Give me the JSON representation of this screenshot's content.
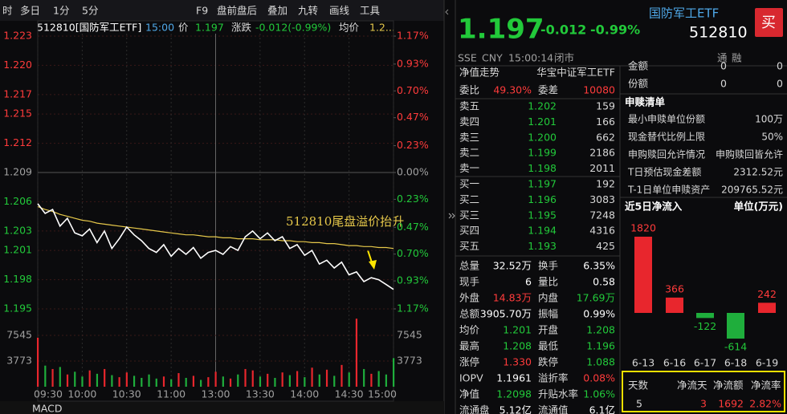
{
  "toolbar": {
    "items": [
      "时",
      "多日",
      "1分",
      "5分",
      "F9",
      "盘前盘后",
      "叠加",
      "九转",
      "画线",
      "工具"
    ]
  },
  "chart_header": {
    "code": "512810[国防军工ETF]",
    "time": "15:00",
    "price_label": "价",
    "price": "1.197",
    "change_label": "涨跌",
    "change": "-0.012(-0.99%)",
    "avg_label": "均价",
    "avg": "1.2..."
  },
  "annotation": "512810尾盘溢价抬升",
  "bottom_tab": "MACD",
  "chart_data": [
    {
      "type": "line",
      "xlim": [
        0,
        240
      ],
      "x": [
        0,
        5,
        10,
        15,
        20,
        25,
        30,
        35,
        40,
        45,
        50,
        55,
        60,
        65,
        70,
        75,
        80,
        85,
        90,
        95,
        100,
        105,
        110,
        115,
        120,
        125,
        130,
        135,
        140,
        145,
        150,
        155,
        160,
        165,
        170,
        175,
        180,
        185,
        190,
        195,
        200,
        205,
        210,
        215,
        220,
        225,
        230,
        235,
        240
      ],
      "xticks": [
        {
          "value": 0,
          "label": "09:30"
        },
        {
          "value": 30,
          "label": "10:00"
        },
        {
          "value": 60,
          "label": "10:30"
        },
        {
          "value": 90,
          "label": "11:00"
        },
        {
          "value": 120,
          "label": "13:00"
        },
        {
          "value": 150,
          "label": "13:30"
        },
        {
          "value": 180,
          "label": "14:00"
        },
        {
          "value": 210,
          "label": "14:30"
        },
        {
          "value": 240,
          "label": "15:00"
        }
      ],
      "ylim": [
        1.195,
        1.223
      ],
      "yticks": [
        {
          "value": 1.223,
          "label": "1.223"
        },
        {
          "value": 1.22,
          "label": "1.220"
        },
        {
          "value": 1.217,
          "label": "1.217"
        },
        {
          "value": 1.215,
          "label": "1.215"
        },
        {
          "value": 1.212,
          "label": "1.212"
        },
        {
          "value": 1.209,
          "label": "1.209"
        },
        {
          "value": 1.206,
          "label": "1.206"
        },
        {
          "value": 1.203,
          "label": "1.203"
        },
        {
          "value": 1.201,
          "label": "1.201"
        },
        {
          "value": 1.198,
          "label": "1.198"
        },
        {
          "value": 1.195,
          "label": "1.195"
        }
      ],
      "y2lim": [
        -1.17,
        1.17
      ],
      "y2ticks": [
        {
          "value": 1.17,
          "label": "1.17%"
        },
        {
          "value": 0.93,
          "label": "0.93%"
        },
        {
          "value": 0.7,
          "label": "0.70%"
        },
        {
          "value": 0.47,
          "label": "0.47%"
        },
        {
          "value": 0.23,
          "label": "0.23%"
        },
        {
          "value": 0,
          "label": "0.00%"
        },
        {
          "value": -0.23,
          "label": "0.23%"
        },
        {
          "value": -0.47,
          "label": "0.47%"
        },
        {
          "value": -0.7,
          "label": "0.70%"
        },
        {
          "value": -0.93,
          "label": "0.93%"
        },
        {
          "value": -1.17,
          "label": "1.17%"
        }
      ],
      "grid": true,
      "series": [
        {
          "color": "#ffffff",
          "values": [
            1.2058,
            1.2048,
            1.2052,
            1.2035,
            1.2043,
            1.2028,
            1.2025,
            1.2032,
            1.2018,
            1.203,
            1.2012,
            1.2022,
            1.2034,
            1.2026,
            1.202,
            1.2012,
            1.2008,
            1.2016,
            1.2004,
            1.2012,
            1.2006,
            1.2013,
            1.2002,
            1.2008,
            1.201,
            1.2006,
            1.2014,
            1.201,
            1.2024,
            1.203,
            1.2022,
            1.2028,
            1.202,
            1.2024,
            1.2012,
            1.2016,
            1.2005,
            1.201,
            1.1996,
            1.2,
            1.1992,
            1.1998,
            1.1985,
            1.1988,
            1.1978,
            1.1982,
            1.198,
            1.1975,
            1.197
          ]
        },
        {
          "color": "#e6c84a",
          "values": [
            1.2055,
            1.2052,
            1.205,
            1.2047,
            1.2045,
            1.2043,
            1.2041,
            1.204,
            1.2038,
            1.2037,
            1.2036,
            1.2035,
            1.2034,
            1.2033,
            1.2032,
            1.2031,
            1.203,
            1.2029,
            1.2028,
            1.2027,
            1.2026,
            1.2026,
            1.2025,
            1.2024,
            1.2024,
            1.2023,
            1.2023,
            1.2022,
            1.2022,
            1.2022,
            1.2021,
            1.2021,
            1.2021,
            1.202,
            1.202,
            1.2019,
            1.2019,
            1.2018,
            1.2018,
            1.2017,
            1.2017,
            1.2016,
            1.2015,
            1.2015,
            1.2014,
            1.2014,
            1.2013,
            1.2013,
            1.2012
          ]
        }
      ]
    },
    {
      "type": "bar",
      "xlim": [
        0,
        240
      ],
      "x": [
        0,
        5,
        10,
        15,
        20,
        25,
        30,
        35,
        40,
        45,
        50,
        55,
        60,
        65,
        70,
        75,
        80,
        85,
        90,
        95,
        100,
        105,
        110,
        115,
        120,
        125,
        130,
        135,
        140,
        145,
        150,
        155,
        160,
        165,
        170,
        175,
        180,
        185,
        190,
        195,
        200,
        205,
        210,
        215,
        220,
        225,
        230,
        235,
        240
      ],
      "ylim": [
        0,
        11318
      ],
      "yticks": [
        3773,
        7545
      ],
      "up_color": "#e8262d",
      "down_color": "#1fae3c",
      "values": [
        7200,
        3100,
        2600,
        2900,
        1800,
        2200,
        1500,
        2400,
        1900,
        2600,
        1700,
        1400,
        2100,
        1600,
        1300,
        1800,
        1200,
        1500,
        1100,
        2000,
        1300,
        1600,
        1000,
        1400,
        2200,
        1500,
        1200,
        1800,
        2600,
        2400,
        1500,
        1900,
        1300,
        2100,
        1700,
        2300,
        1400,
        2800,
        1800,
        2500,
        1600,
        3200,
        2100,
        10000,
        2600,
        1900,
        2300,
        1800,
        4200
      ]
    },
    {
      "type": "bar",
      "title": "近5日净流入",
      "unit": "单位(万元)",
      "categories": [
        "6-13",
        "6-16",
        "6-17",
        "6-18",
        "6-19"
      ],
      "values": [
        1820,
        366,
        -122,
        -614,
        242
      ],
      "up_color": "#e8262d",
      "down_color": "#1fae3c"
    }
  ],
  "quote": {
    "price": "1.197",
    "change": "-0.012",
    "change_pct": "-0.99%",
    "name": "国防军工ETF",
    "code": "512810",
    "buy": "买",
    "exchange": "SSE",
    "currency": "CNY",
    "time": "15:00:14",
    "status": "闭市",
    "tags": [
      "通",
      "融"
    ]
  },
  "order_book": {
    "header": [
      "净值走势",
      "华宝中证军工ETF"
    ],
    "ratio": [
      "委比",
      "49.30%",
      "委差",
      "10080"
    ],
    "rows": [
      [
        "卖五",
        "1.202",
        "159"
      ],
      [
        "卖四",
        "1.201",
        "166"
      ],
      [
        "卖三",
        "1.200",
        "662"
      ],
      [
        "卖二",
        "1.199",
        "2186"
      ],
      [
        "卖一",
        "1.198",
        "2011"
      ],
      [
        "买一",
        "1.197",
        "192"
      ],
      [
        "买二",
        "1.196",
        "3083"
      ],
      [
        "买三",
        "1.195",
        "7248"
      ],
      [
        "买四",
        "1.194",
        "4316"
      ],
      [
        "买五",
        "1.193",
        "425"
      ]
    ]
  },
  "stats": {
    "rows": [
      [
        "总量",
        "32.52万",
        "换手",
        "6.35%"
      ],
      [
        "现手",
        "6",
        "量比",
        "0.58"
      ],
      [
        "外盘",
        "14.83万",
        "内盘",
        "17.69万"
      ],
      [
        "总额",
        "3905.70万",
        "振幅",
        "0.99%"
      ],
      [
        "均价",
        "1.201",
        "开盘",
        "1.208"
      ],
      [
        "最高",
        "1.208",
        "最低",
        "1.196"
      ],
      [
        "涨停",
        "1.330",
        "跌停",
        "1.088"
      ],
      [
        "IOPV",
        "1.1961",
        "溢折率",
        "0.08%"
      ],
      [
        "净值",
        "1.2098",
        "升贴水率",
        "1.06%"
      ],
      [
        "流通盘",
        "5.12亿",
        "流通值",
        "6.1亿"
      ]
    ]
  },
  "etf_info": {
    "top_rows": [
      [
        "金额",
        "0",
        "0"
      ],
      [
        "份额",
        "0",
        "0"
      ]
    ],
    "title": "申赎清单",
    "rows": [
      [
        "最小申赎单位份额",
        "100万"
      ],
      [
        "现金替代比例上限",
        "50%"
      ],
      [
        "申购赎回允许情况",
        "申购赎回皆允许"
      ],
      [
        "T日预估现金差额",
        "2312.52元"
      ],
      [
        "T-1日单位申赎资产",
        "209765.52元"
      ]
    ]
  },
  "flow_summary": {
    "header": [
      "天数",
      "净流天",
      "净流额",
      "净流率"
    ],
    "values": [
      "5",
      "3",
      "1692",
      "2.82%"
    ]
  }
}
